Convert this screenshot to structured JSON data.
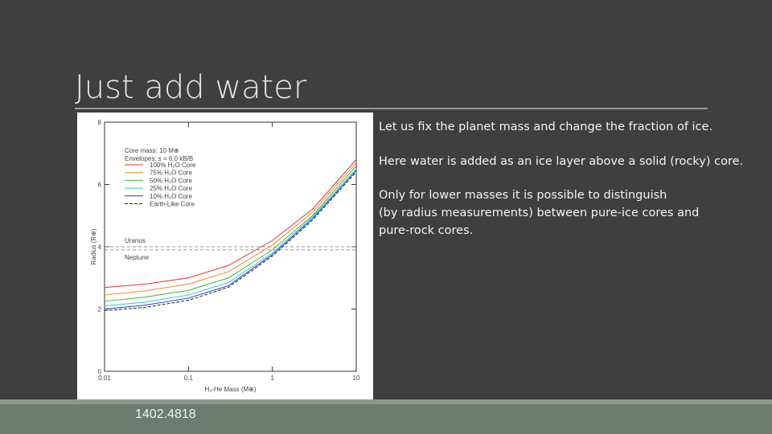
{
  "title": "Just add water",
  "paragraphs": [
    [
      "Let us fix the planet mass and change the fraction of ice."
    ],
    [
      "Here water is added as an ice layer above a solid (rocky) core."
    ],
    [
      "Only for lower masses it is possible to distinguish",
      "(by radius measurements) between pure-ice cores and",
      "pure-rock cores."
    ]
  ],
  "footer": "1402.4818",
  "chart_data": {
    "type": "line",
    "xlabel": "H₂-He Mass (M⊕)",
    "ylabel": "Radius (R⊕)",
    "legend_title": [
      "Core mass: 10 M⊕",
      "Envelopes: s = 6.0 kB/B"
    ],
    "x": [
      0.01,
      0.03,
      0.1,
      0.3,
      1,
      3,
      10
    ],
    "xlog": true,
    "xlim": [
      0.01,
      10
    ],
    "xticks": [
      0.01,
      0.1,
      1,
      10
    ],
    "ylim": [
      0,
      8
    ],
    "yticks": [
      0,
      2,
      4,
      6,
      8
    ],
    "series": [
      {
        "name": "100% H₂O Core",
        "color": "#e8302a",
        "values": [
          2.69,
          2.8,
          3.0,
          3.4,
          4.2,
          5.2,
          6.8
        ]
      },
      {
        "name": "75% H₂O Core",
        "color": "#f08a2a",
        "values": [
          2.45,
          2.58,
          2.8,
          3.2,
          4.05,
          5.1,
          6.7
        ]
      },
      {
        "name": "50% H₂O Core",
        "color": "#38b83a",
        "values": [
          2.25,
          2.38,
          2.6,
          3.0,
          3.9,
          5.0,
          6.6
        ]
      },
      {
        "name": "25% H₂O Core",
        "color": "#30c8d8",
        "values": [
          2.1,
          2.22,
          2.45,
          2.85,
          3.8,
          4.95,
          6.5
        ]
      },
      {
        "name": "10% H₂O Core",
        "color": "#2a3ad0",
        "values": [
          2.0,
          2.12,
          2.35,
          2.75,
          3.75,
          4.9,
          6.45
        ]
      },
      {
        "name": "Earth-Like Core",
        "color": "#222222",
        "dashed": true,
        "values": [
          1.95,
          2.05,
          2.28,
          2.7,
          3.7,
          4.85,
          6.4
        ]
      }
    ],
    "reference_lines": [
      {
        "label": "Uranus",
        "value": 4.0
      },
      {
        "label": "Neptune",
        "value": 3.9
      }
    ]
  }
}
